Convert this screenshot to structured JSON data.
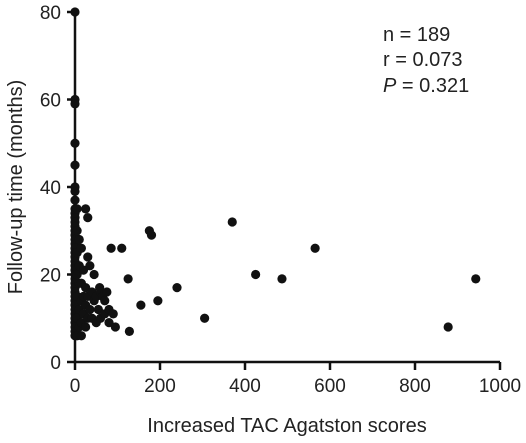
{
  "chart_data": {
    "type": "scatter",
    "title": "",
    "xlabel": "Increased TAC Agatston scores",
    "ylabel": "Follow-up time (months)",
    "xlim": [
      0,
      1000
    ],
    "ylim": [
      0,
      80
    ],
    "xticks": [
      "0",
      "200",
      "400",
      "600",
      "800",
      "1000"
    ],
    "yticks": [
      "0",
      "20",
      "40",
      "60",
      "80"
    ],
    "grid": false,
    "marker_color": "#111111",
    "stats": {
      "n_label": "n = 189",
      "r_label": "r = 0.073",
      "p_symbol": "P",
      "p_rest": " = 0.321"
    },
    "points": [
      [
        0,
        80
      ],
      [
        0,
        60
      ],
      [
        0,
        59
      ],
      [
        0,
        50
      ],
      [
        0,
        45
      ],
      [
        0,
        40
      ],
      [
        0,
        39
      ],
      [
        0,
        37
      ],
      [
        0,
        35
      ],
      [
        0,
        34
      ],
      [
        0,
        33
      ],
      [
        0,
        32
      ],
      [
        0,
        31
      ],
      [
        0,
        30
      ],
      [
        0,
        29
      ],
      [
        0,
        28
      ],
      [
        0,
        27
      ],
      [
        0,
        26
      ],
      [
        0,
        25
      ],
      [
        0,
        24
      ],
      [
        0,
        23
      ],
      [
        0,
        22
      ],
      [
        0,
        21
      ],
      [
        0,
        20
      ],
      [
        0,
        19
      ],
      [
        0,
        18
      ],
      [
        0,
        17
      ],
      [
        0,
        16
      ],
      [
        0,
        15
      ],
      [
        0,
        14
      ],
      [
        0,
        13
      ],
      [
        0,
        12
      ],
      [
        0,
        11
      ],
      [
        0,
        10
      ],
      [
        0,
        9
      ],
      [
        0,
        8
      ],
      [
        0,
        7
      ],
      [
        0,
        6
      ],
      [
        5,
        35
      ],
      [
        5,
        30
      ],
      [
        5,
        25
      ],
      [
        5,
        20
      ],
      [
        5,
        15
      ],
      [
        5,
        10
      ],
      [
        5,
        6
      ],
      [
        10,
        28
      ],
      [
        10,
        22
      ],
      [
        10,
        18
      ],
      [
        10,
        12
      ],
      [
        10,
        8
      ],
      [
        15,
        26
      ],
      [
        15,
        18
      ],
      [
        15,
        14
      ],
      [
        15,
        9
      ],
      [
        15,
        6
      ],
      [
        20,
        21
      ],
      [
        20,
        15
      ],
      [
        20,
        11
      ],
      [
        25,
        35
      ],
      [
        25,
        17
      ],
      [
        25,
        13
      ],
      [
        25,
        8
      ],
      [
        30,
        33
      ],
      [
        30,
        24
      ],
      [
        30,
        15
      ],
      [
        30,
        10
      ],
      [
        35,
        22
      ],
      [
        35,
        12
      ],
      [
        40,
        16
      ],
      [
        40,
        10
      ],
      [
        45,
        20
      ],
      [
        45,
        14
      ],
      [
        50,
        15
      ],
      [
        50,
        9
      ],
      [
        55,
        12
      ],
      [
        58,
        17
      ],
      [
        60,
        16
      ],
      [
        60,
        10
      ],
      [
        65,
        15
      ],
      [
        70,
        14
      ],
      [
        70,
        11
      ],
      [
        75,
        16
      ],
      [
        80,
        9
      ],
      [
        80,
        12
      ],
      [
        85,
        26
      ],
      [
        90,
        11
      ],
      [
        95,
        8
      ],
      [
        110,
        26
      ],
      [
        125,
        19
      ],
      [
        128,
        7
      ],
      [
        155,
        13
      ],
      [
        175,
        30
      ],
      [
        180,
        29
      ],
      [
        195,
        14
      ],
      [
        240,
        17
      ],
      [
        305,
        10
      ],
      [
        370,
        32
      ],
      [
        425,
        20
      ],
      [
        487,
        19
      ],
      [
        565,
        26
      ],
      [
        878,
        8
      ],
      [
        943,
        19
      ]
    ]
  }
}
